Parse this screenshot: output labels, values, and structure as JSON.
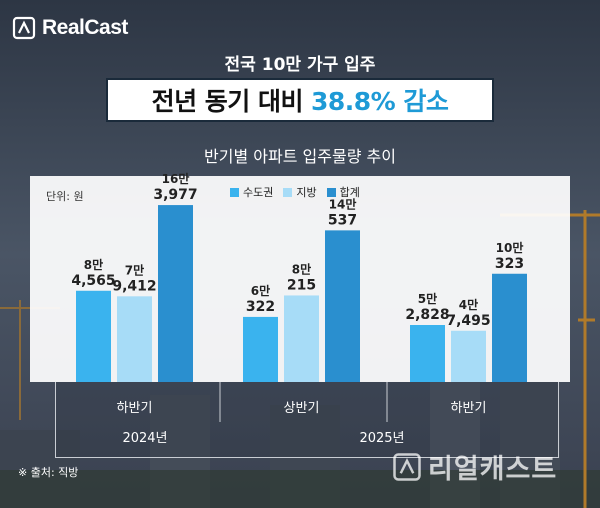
{
  "brand": {
    "logo_text": "RealCast",
    "watermark": "리얼캐스트"
  },
  "header": {
    "subtitle": "전국 10만 가구 입주",
    "title_main": "전년 동기 대비",
    "title_highlight": "38.8% 감소"
  },
  "colors": {
    "capital": "#3ab3ee",
    "local": "#a7dcf7",
    "total": "#2a8fcf",
    "highlight": "#1e9ad6"
  },
  "chart_data": {
    "type": "bar",
    "title": "반기별 아파트 입주물량 추이",
    "unit": "단위: 원",
    "legend_position": "top-center",
    "categories": [
      "하반기",
      "상반기",
      "하반기"
    ],
    "years": [
      {
        "label": "2024년",
        "span": [
          0,
          0
        ]
      },
      {
        "label": "2025년",
        "span": [
          1,
          2
        ]
      }
    ],
    "series": [
      {
        "name": "수도권",
        "values": [
          84565,
          60322,
          52828
        ],
        "labels": [
          [
            "8만",
            "4,565"
          ],
          [
            "6만",
            "322"
          ],
          [
            "5만",
            "2,828"
          ]
        ]
      },
      {
        "name": "지방",
        "values": [
          79412,
          80215,
          47495
        ],
        "labels": [
          [
            "7만",
            "9,412"
          ],
          [
            "8만",
            "215"
          ],
          [
            "4만",
            "7,495"
          ]
        ]
      },
      {
        "name": "합계",
        "values": [
          163977,
          140537,
          100323
        ],
        "labels": [
          [
            "16만",
            "3,977"
          ],
          [
            "14만",
            "537"
          ],
          [
            "10만",
            "323"
          ]
        ]
      }
    ],
    "ylim": [
      0,
      190000
    ],
    "grid": false
  },
  "source": "※ 출처: 직방"
}
